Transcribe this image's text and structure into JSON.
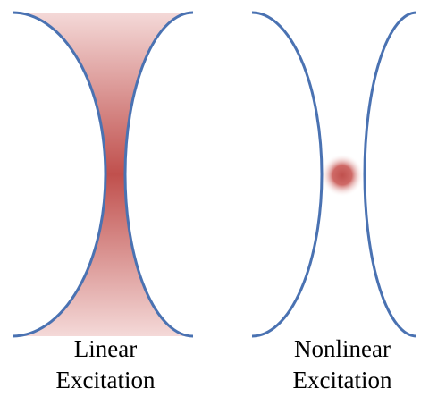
{
  "panels": [
    {
      "label": [
        "Linear",
        "Excitation"
      ]
    },
    {
      "label": [
        "Nonlinear",
        "Excitation"
      ]
    }
  ]
}
